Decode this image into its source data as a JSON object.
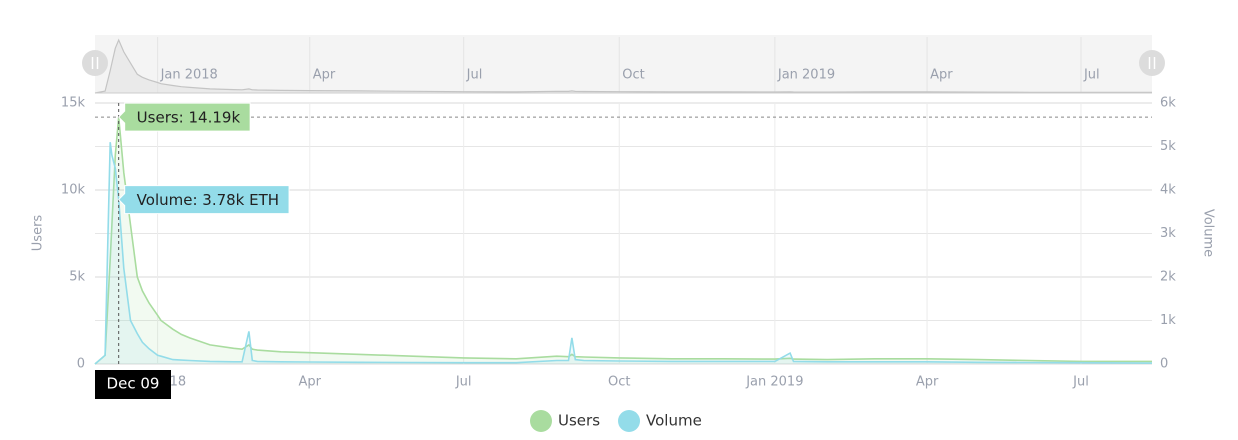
{
  "chart_data": {
    "type": "line",
    "x": [
      "2017-11-25",
      "2017-12-01",
      "2017-12-04",
      "2017-12-05",
      "2017-12-07",
      "2017-12-09",
      "2017-12-12",
      "2017-12-16",
      "2017-12-20",
      "2017-12-23",
      "2017-12-27",
      "2018-01-01",
      "2018-01-03",
      "2018-01-10",
      "2018-01-15",
      "2018-01-20",
      "2018-02-01",
      "2018-02-15",
      "2018-02-20",
      "2018-02-24",
      "2018-02-26",
      "2018-03-01",
      "2018-03-15",
      "2018-04-01",
      "2018-05-01",
      "2018-06-01",
      "2018-07-01",
      "2018-08-01",
      "2018-08-25",
      "2018-09-01",
      "2018-09-03",
      "2018-09-05",
      "2018-09-10",
      "2018-10-01",
      "2018-11-01",
      "2018-12-01",
      "2019-01-01",
      "2019-01-10",
      "2019-01-12",
      "2019-02-01",
      "2019-03-01",
      "2019-04-01",
      "2019-05-01",
      "2019-06-01",
      "2019-07-01",
      "2019-08-12"
    ],
    "series": [
      {
        "name": "Users",
        "color": "#a9dc9f",
        "axis": "y",
        "values": [
          0,
          500,
          6000,
          8000,
          12000,
          14190,
          11000,
          8000,
          5000,
          4200,
          3500,
          2800,
          2500,
          2000,
          1700,
          1500,
          1100,
          900,
          850,
          1100,
          850,
          800,
          700,
          650,
          550,
          450,
          350,
          300,
          450,
          420,
          550,
          420,
          400,
          350,
          300,
          300,
          280,
          330,
          280,
          250,
          300,
          300,
          250,
          200,
          150,
          150
        ]
      },
      {
        "name": "Volume",
        "color": "#93dce9",
        "axis": "y2",
        "values": [
          0,
          200,
          5100,
          4800,
          4500,
          3780,
          2200,
          1000,
          700,
          500,
          350,
          200,
          180,
          100,
          90,
          80,
          60,
          50,
          50,
          750,
          80,
          60,
          50,
          45,
          40,
          35,
          30,
          30,
          80,
          80,
          600,
          100,
          80,
          70,
          60,
          60,
          60,
          250,
          60,
          50,
          50,
          50,
          40,
          35,
          30,
          20
        ]
      }
    ],
    "y_label": "Users",
    "y2_label": "Volume",
    "xlim": [
      "2017-11-25",
      "2019-08-12"
    ],
    "xticks": [
      {
        "value": "2018-01-01",
        "label": "Jan 2018"
      },
      {
        "value": "2018-04-01",
        "label": "Apr"
      },
      {
        "value": "2018-07-01",
        "label": "Jul"
      },
      {
        "value": "2018-10-01",
        "label": "Oct"
      },
      {
        "value": "2019-01-01",
        "label": "Jan 2019"
      },
      {
        "value": "2019-04-01",
        "label": "Apr"
      },
      {
        "value": "2019-07-01",
        "label": "Jul"
      }
    ],
    "ylim": [
      0,
      15000
    ],
    "yticks": [
      0,
      {
        "value": 5000,
        "label": "5k"
      },
      {
        "value": 10000,
        "label": "10k"
      },
      {
        "value": 15000,
        "label": "15k"
      }
    ],
    "y2lim": [
      0,
      6000
    ],
    "y2ticks": [
      0,
      {
        "value": 1000,
        "label": "1k"
      },
      {
        "value": 2000,
        "label": "2k"
      },
      {
        "value": 3000,
        "label": "3k"
      },
      {
        "value": 4000,
        "label": "4k"
      },
      {
        "value": 5000,
        "label": "5k"
      },
      {
        "value": 6000,
        "label": "6k"
      }
    ],
    "grid": true,
    "tooltip": {
      "x": "2017-12-09",
      "x_label": "Dec 09",
      "items": [
        "Users: 14.19k",
        "Volume: 3.78k ETH"
      ]
    }
  }
}
